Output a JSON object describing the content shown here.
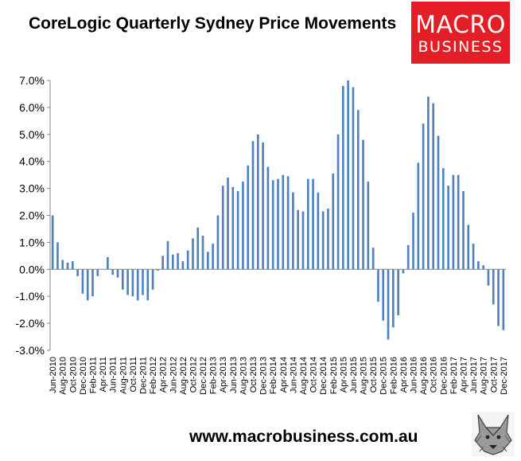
{
  "title": "CoreLogic Quarterly Sydney Price Movements",
  "logo": {
    "line1": "MACRO",
    "line2": "BUSINESS",
    "bg_color": "#e41e26",
    "text_color": "#ffffff"
  },
  "footer": {
    "url": "www.macrobusiness.com.au"
  },
  "wolf_logo_icon": "wolf-head-icon",
  "chart_data": {
    "type": "bar",
    "bar_color": "#4f81bd",
    "ylim": [
      -0.03,
      0.07
    ],
    "yticks": [
      -0.03,
      -0.02,
      -0.01,
      0.0,
      0.01,
      0.02,
      0.03,
      0.04,
      0.05,
      0.06,
      0.07
    ],
    "ytick_labels": [
      "-3.0%",
      "-2.0%",
      "-1.0%",
      "0.0%",
      "1.0%",
      "2.0%",
      "3.0%",
      "4.0%",
      "5.0%",
      "6.0%",
      "7.0%"
    ],
    "grid": false,
    "xtick_labels": [
      "Jun-2010",
      "Aug-2010",
      "Oct-2010",
      "Dec-2010",
      "Feb-2011",
      "Apr-2011",
      "Jun-2011",
      "Aug-2011",
      "Oct-2011",
      "Dec-2011",
      "Feb-2012",
      "Apr-2012",
      "Jun-2012",
      "Aug-2012",
      "Oct-2012",
      "Dec-2012",
      "Feb-2013",
      "Apr-2013",
      "Jun-2013",
      "Aug-2013",
      "Oct-2013",
      "Dec-2013",
      "Feb-2014",
      "Apr-2014",
      "Jun-2014",
      "Aug-2014",
      "Oct-2014",
      "Dec-2014",
      "Feb-2015",
      "Apr-2015",
      "Jun-2015",
      "Aug-2015",
      "Oct-2015",
      "Dec-2015",
      "Feb-2016",
      "Apr-2016",
      "Jun-2016",
      "Aug-2016",
      "Oct-2016",
      "Dec-2016",
      "Feb-2017",
      "Apr-2017",
      "Jun-2017",
      "Aug-2017",
      "Oct-2017",
      "Dec-2017"
    ],
    "values": [
      0.02,
      0.01,
      0.0035,
      0.0025,
      0.003,
      -0.0025,
      -0.009,
      -0.0115,
      -0.01,
      -0.0025,
      0.0,
      0.0045,
      -0.002,
      -0.003,
      -0.0075,
      -0.0095,
      -0.01,
      -0.0115,
      -0.0095,
      -0.0115,
      -0.0075,
      -0.0005,
      0.005,
      0.0105,
      0.0055,
      0.006,
      0.003,
      0.007,
      0.0115,
      0.0155,
      0.0125,
      0.0065,
      0.0095,
      0.02,
      0.031,
      0.034,
      0.0305,
      0.029,
      0.0325,
      0.0385,
      0.0475,
      0.05,
      0.047,
      0.038,
      0.033,
      0.0335,
      0.035,
      0.0345,
      0.0285,
      0.022,
      0.0215,
      0.0335,
      0.0335,
      0.0285,
      0.0215,
      0.0225,
      0.0355,
      0.05,
      0.068,
      0.07,
      0.0675,
      0.059,
      0.048,
      0.0325,
      0.008,
      -0.012,
      -0.019,
      -0.026,
      -0.0215,
      -0.017,
      -0.0015,
      0.009,
      0.021,
      0.0395,
      0.054,
      0.064,
      0.0615,
      0.0495,
      0.0375,
      0.031,
      0.035,
      0.035,
      0.029,
      0.0165,
      0.0095,
      0.003,
      0.0015,
      -0.006,
      -0.013,
      -0.021,
      -0.0225
    ]
  }
}
